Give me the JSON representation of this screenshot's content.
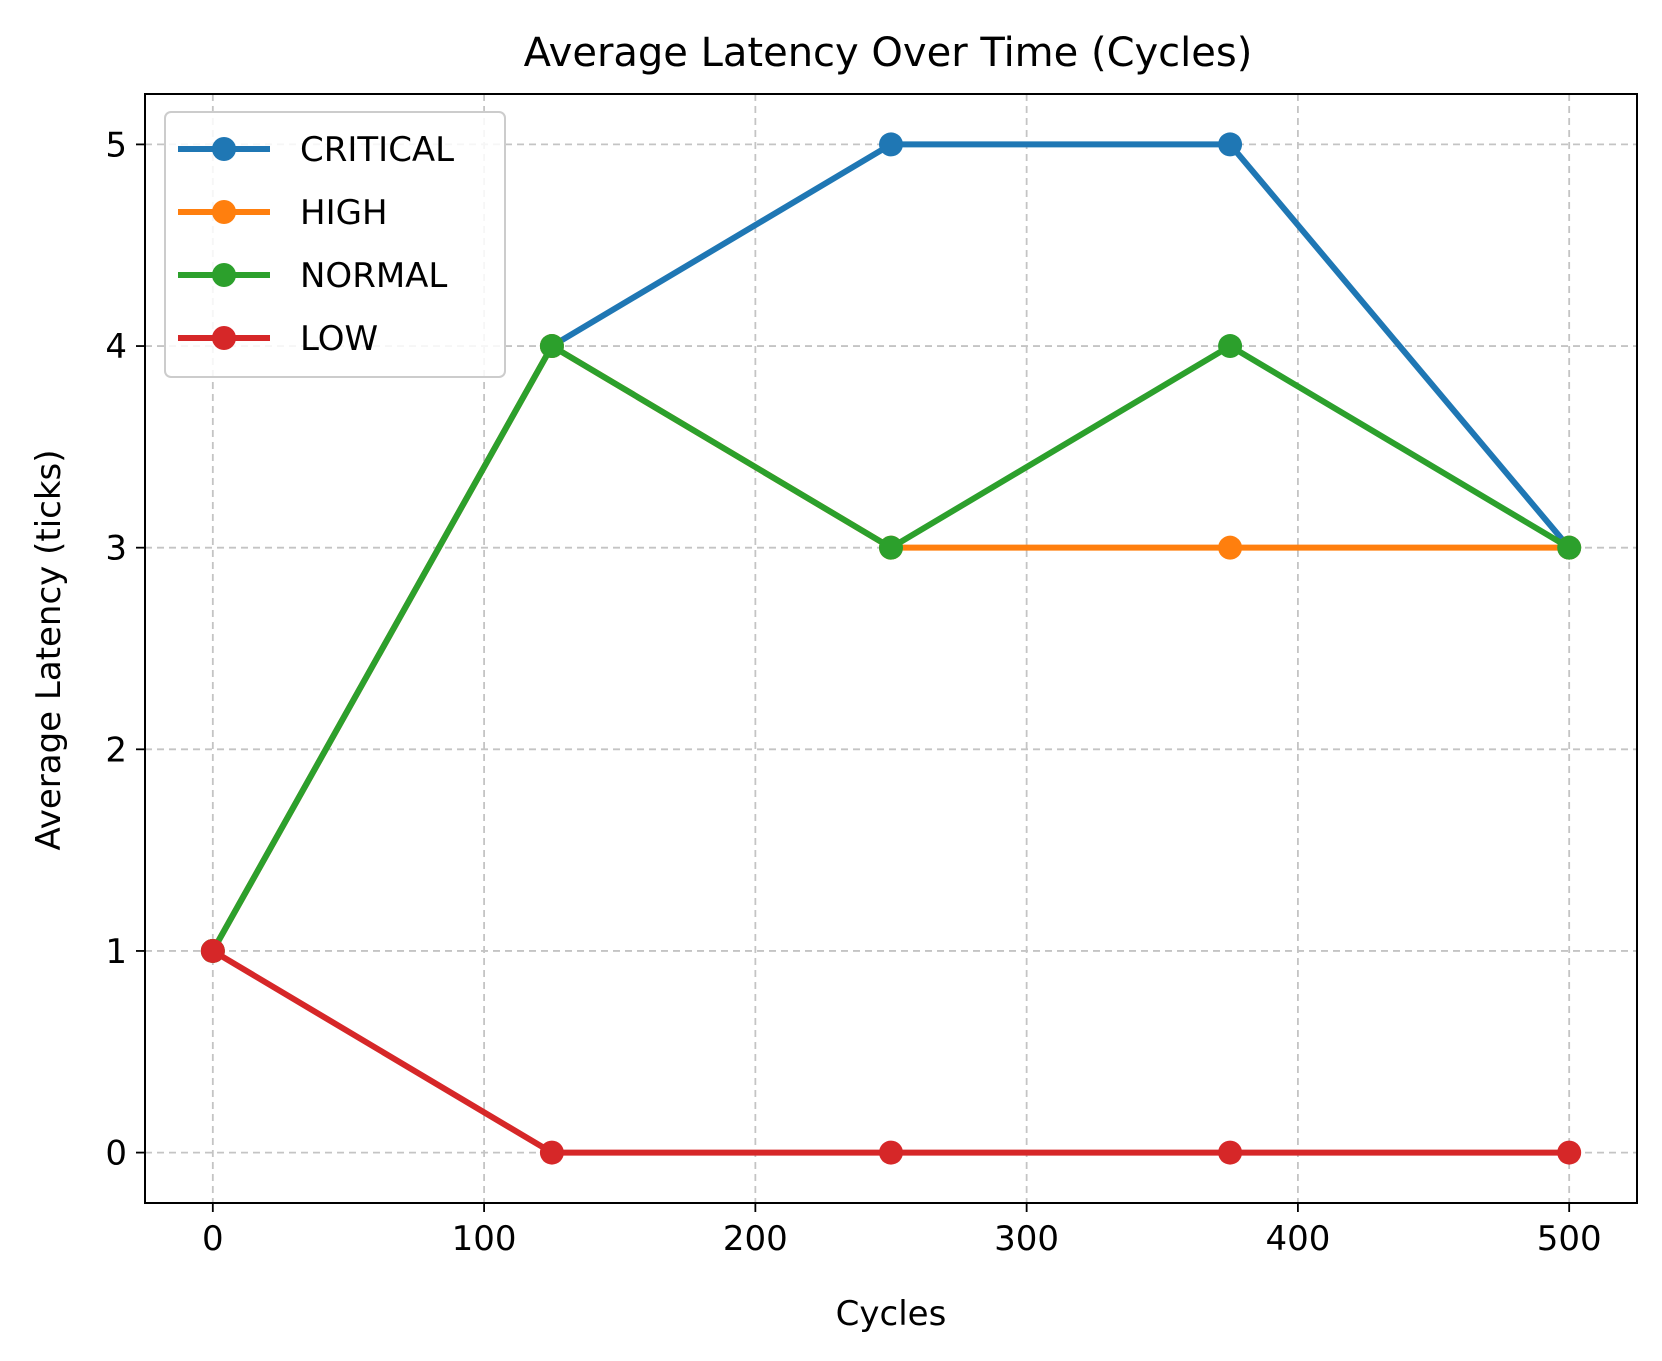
{
  "chart_data": {
    "type": "line",
    "title": "Average Latency Over Time (Cycles)",
    "xlabel": "Cycles",
    "ylabel": "Average Latency (ticks)",
    "xlim": [
      -25,
      525
    ],
    "ylim": [
      -0.25,
      5.25
    ],
    "xticks": [
      0,
      100,
      200,
      300,
      400,
      500
    ],
    "yticks": [
      0,
      1,
      2,
      3,
      4,
      5
    ],
    "grid": true,
    "legend_position": "top-left",
    "x": [
      0,
      125,
      250,
      375,
      500
    ],
    "series": [
      {
        "name": "CRITICAL",
        "color": "#1f77b4",
        "values": [
          1,
          4,
          5,
          5,
          3
        ]
      },
      {
        "name": "HIGH",
        "color": "#ff7f0e",
        "values": [
          1,
          4,
          3,
          3,
          3
        ]
      },
      {
        "name": "NORMAL",
        "color": "#2ca02c",
        "values": [
          1,
          4,
          3,
          4,
          3
        ]
      },
      {
        "name": "LOW",
        "color": "#d62728",
        "values": [
          1,
          0,
          0,
          0,
          0
        ]
      }
    ]
  }
}
